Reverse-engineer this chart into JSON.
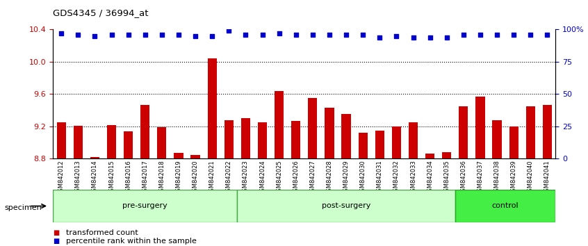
{
  "title": "GDS4345 / 36994_at",
  "categories": [
    "GSM842012",
    "GSM842013",
    "GSM842014",
    "GSM842015",
    "GSM842016",
    "GSM842017",
    "GSM842018",
    "GSM842019",
    "GSM842020",
    "GSM842021",
    "GSM842022",
    "GSM842023",
    "GSM842024",
    "GSM842025",
    "GSM842026",
    "GSM842027",
    "GSM842028",
    "GSM842029",
    "GSM842030",
    "GSM842031",
    "GSM842032",
    "GSM842033",
    "GSM842034",
    "GSM842035",
    "GSM842036",
    "GSM842037",
    "GSM842038",
    "GSM842039",
    "GSM842040",
    "GSM842041"
  ],
  "bar_values": [
    9.25,
    9.21,
    8.82,
    9.22,
    9.14,
    9.47,
    9.19,
    8.87,
    8.85,
    10.04,
    9.28,
    9.3,
    9.25,
    9.64,
    9.27,
    9.55,
    9.43,
    9.35,
    9.12,
    9.15,
    9.2,
    9.25,
    8.86,
    8.88,
    9.45,
    9.57,
    9.28,
    9.2,
    9.45,
    9.47
  ],
  "percentile_values": [
    97,
    96,
    95,
    96,
    96,
    96,
    96,
    96,
    95,
    95,
    99,
    96,
    96,
    97,
    96,
    96,
    96,
    96,
    96,
    94,
    95,
    94,
    94,
    94,
    96,
    96,
    96,
    96,
    96,
    96
  ],
  "bar_color": "#cc0000",
  "dot_color": "#0000cc",
  "ylim_left": [
    8.8,
    10.4
  ],
  "ylim_right": [
    0,
    100
  ],
  "yticks_left": [
    8.8,
    9.2,
    9.6,
    10.0,
    10.4
  ],
  "yticks_right": [
    0,
    25,
    50,
    75,
    100
  ],
  "ytick_labels_right": [
    "0",
    "25",
    "50",
    "75",
    "100%"
  ],
  "grid_values": [
    9.2,
    9.6,
    10.0
  ],
  "groups": [
    {
      "label": "pre-surgery",
      "start": 0,
      "end": 11,
      "color_light": "#ccffcc",
      "color_dark": "#44cc44"
    },
    {
      "label": "post-surgery",
      "start": 11,
      "end": 24,
      "color_light": "#ccffcc",
      "color_dark": "#44cc44"
    },
    {
      "label": "control",
      "start": 24,
      "end": 30,
      "color_light": "#44dd44",
      "color_dark": "#22bb22"
    }
  ],
  "specimen_label": "specimen",
  "legend_bar_label": "transformed count",
  "legend_dot_label": "percentile rank within the sample",
  "xticklabel_bg": "#cccccc",
  "plot_bg_color": "#ffffff"
}
